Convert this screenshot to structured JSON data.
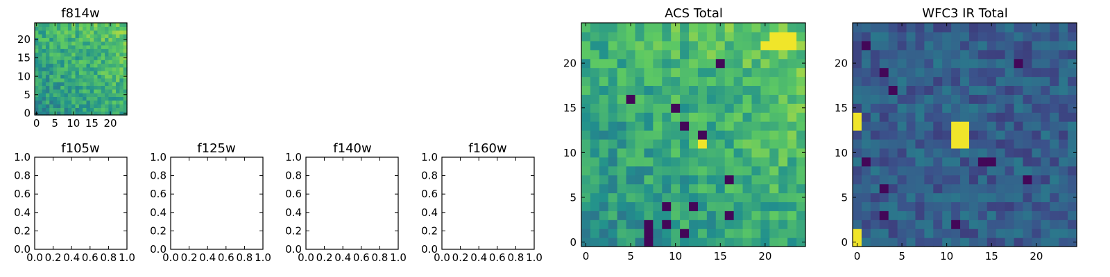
{
  "figure": {
    "background": "#ffffff",
    "colormap": "viridis",
    "colormap_stops": [
      "#440154",
      "#3b528b",
      "#21908d",
      "#5dc963",
      "#fde725"
    ]
  },
  "chart_data": [
    {
      "id": "f814w",
      "type": "heatmap",
      "title": "f814w",
      "xticks": [
        "0",
        "5",
        "10",
        "15",
        "20"
      ],
      "yticks": [
        "0",
        "5",
        "10",
        "15",
        "20"
      ],
      "xlim": [
        -0.5,
        24.5
      ],
      "ylim": [
        -0.5,
        24.5
      ],
      "grid_size": 25,
      "style": "noisy-green-bright-top-right",
      "seed": 11
    },
    {
      "id": "f105w",
      "type": "empty",
      "title": "f105w",
      "xticks": [
        "0.0",
        "0.2",
        "0.4",
        "0.6",
        "0.8",
        "1.0"
      ],
      "yticks": [
        "0.0",
        "0.2",
        "0.4",
        "0.6",
        "0.8",
        "1.0"
      ],
      "xlim": [
        0,
        1
      ],
      "ylim": [
        0,
        1
      ]
    },
    {
      "id": "f125w",
      "type": "empty",
      "title": "f125w",
      "xticks": [
        "0.0",
        "0.2",
        "0.4",
        "0.6",
        "0.8",
        "1.0"
      ],
      "yticks": [
        "0.0",
        "0.2",
        "0.4",
        "0.6",
        "0.8",
        "1.0"
      ],
      "xlim": [
        0,
        1
      ],
      "ylim": [
        0,
        1
      ]
    },
    {
      "id": "f140w",
      "type": "empty",
      "title": "f140w",
      "xticks": [
        "0.0",
        "0.2",
        "0.4",
        "0.6",
        "0.8",
        "1.0"
      ],
      "yticks": [
        "0.0",
        "0.2",
        "0.4",
        "0.6",
        "0.8",
        "1.0"
      ],
      "xlim": [
        0,
        1
      ],
      "ylim": [
        0,
        1
      ]
    },
    {
      "id": "f160w",
      "type": "empty",
      "title": "f160w",
      "xticks": [
        "0.0",
        "0.2",
        "0.4",
        "0.6",
        "0.8",
        "1.0"
      ],
      "yticks": [
        "0.0",
        "0.2",
        "0.4",
        "0.6",
        "0.8",
        "1.0"
      ],
      "xlim": [
        0,
        1
      ],
      "ylim": [
        0,
        1
      ]
    },
    {
      "id": "acs-total",
      "type": "heatmap",
      "title": "ACS Total",
      "xticks": [
        "0",
        "5",
        "10",
        "15",
        "20"
      ],
      "yticks": [
        "0",
        "5",
        "10",
        "15",
        "20"
      ],
      "xlim": [
        -0.5,
        24.5
      ],
      "ylim": [
        -0.5,
        24.5
      ],
      "grid_size": 25,
      "style": "noisy-green-bright-top-right",
      "seed": 11,
      "dark_cells": [
        [
          7,
          0
        ],
        [
          7,
          1
        ],
        [
          7,
          2
        ],
        [
          11,
          1
        ],
        [
          9,
          2
        ],
        [
          9,
          4
        ],
        [
          12,
          4
        ],
        [
          16,
          3
        ],
        [
          16,
          7
        ],
        [
          5,
          16
        ],
        [
          10,
          15
        ],
        [
          11,
          13
        ],
        [
          13,
          12
        ],
        [
          15,
          20
        ]
      ],
      "bright_cells": [
        [
          21,
          23
        ],
        [
          22,
          23
        ],
        [
          23,
          23
        ],
        [
          20,
          22
        ],
        [
          21,
          22
        ],
        [
          22,
          22
        ],
        [
          23,
          22
        ],
        [
          13,
          11
        ]
      ]
    },
    {
      "id": "wfc3-ir-total",
      "type": "heatmap",
      "title": "WFC3 IR Total",
      "xticks": [
        "0",
        "5",
        "10",
        "15",
        "20"
      ],
      "yticks": [
        "0",
        "5",
        "10",
        "15",
        "20"
      ],
      "xlim": [
        -0.5,
        24.5
      ],
      "ylim": [
        -0.5,
        24.5
      ],
      "grid_size": 25,
      "style": "dark-blue-with-source",
      "seed": 29,
      "bright_cells": [
        [
          11,
          11
        ],
        [
          12,
          11
        ],
        [
          11,
          12
        ],
        [
          12,
          12
        ],
        [
          11,
          13
        ],
        [
          12,
          13
        ],
        [
          0,
          0
        ],
        [
          0,
          1
        ],
        [
          0,
          13
        ],
        [
          0,
          14
        ]
      ],
      "dark_cells": [
        [
          1,
          22
        ],
        [
          3,
          19
        ],
        [
          4,
          17
        ],
        [
          18,
          20
        ],
        [
          14,
          9
        ],
        [
          15,
          9
        ],
        [
          3,
          6
        ],
        [
          3,
          3
        ],
        [
          11,
          2
        ],
        [
          19,
          7
        ],
        [
          1,
          9
        ]
      ]
    }
  ]
}
